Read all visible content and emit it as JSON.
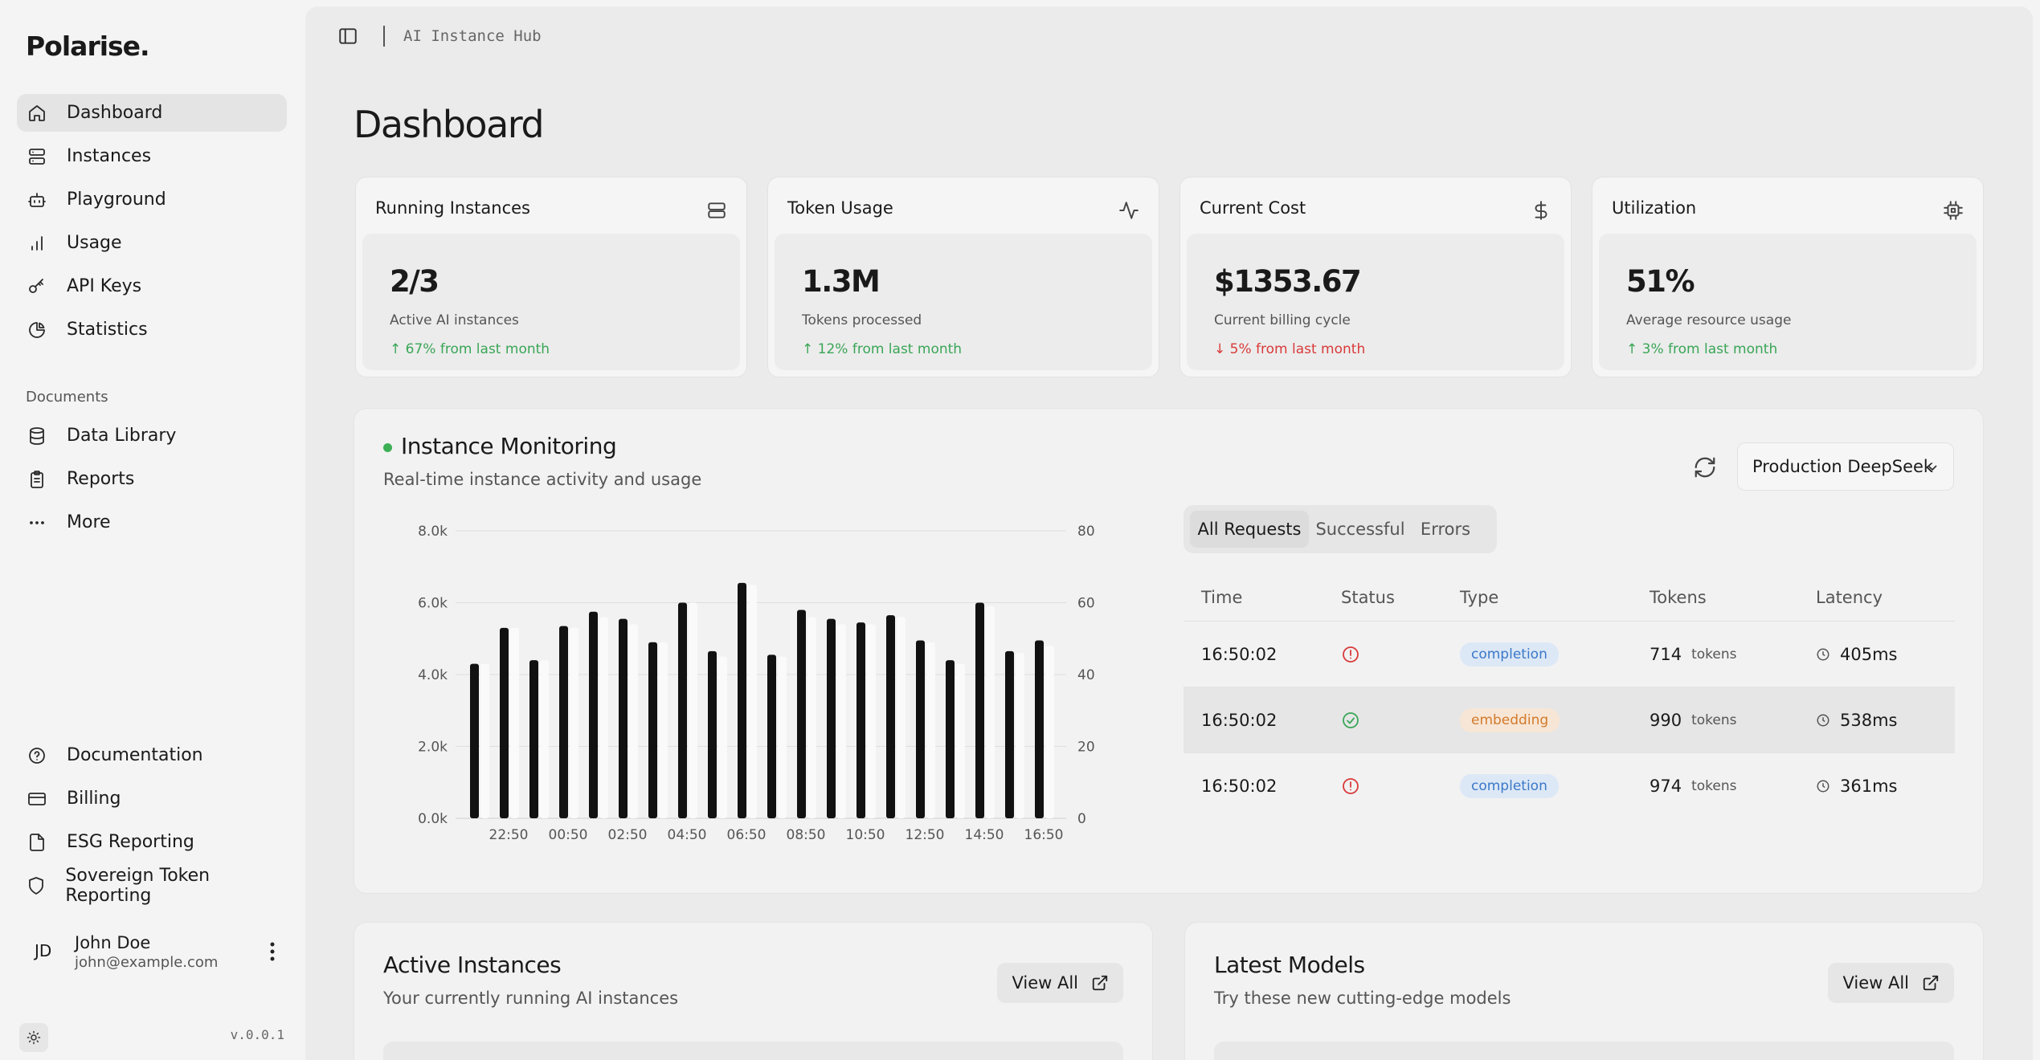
{
  "sidebar": {
    "brand": "Polarise.",
    "nav": [
      {
        "label": "Dashboard",
        "icon": "home-icon",
        "active": true
      },
      {
        "label": "Instances",
        "icon": "server-icon"
      },
      {
        "label": "Playground",
        "icon": "bot-icon"
      },
      {
        "label": "Usage",
        "icon": "bar-chart-icon"
      },
      {
        "label": "API Keys",
        "icon": "key-icon"
      },
      {
        "label": "Statistics",
        "icon": "pie-chart-icon"
      }
    ],
    "documents_label": "Documents",
    "documents": [
      {
        "label": "Data Library",
        "icon": "database-icon"
      },
      {
        "label": "Reports",
        "icon": "clipboard-icon"
      },
      {
        "label": "More",
        "icon": "more-horizontal-icon"
      }
    ],
    "secondary": [
      {
        "label": "Documentation",
        "icon": "help-circle-icon"
      },
      {
        "label": "Billing",
        "icon": "credit-card-icon"
      },
      {
        "label": "ESG Reporting",
        "icon": "file-icon"
      },
      {
        "label": "Sovereign Token Reporting",
        "icon": "shield-icon"
      }
    ],
    "user": {
      "initials": "JD",
      "name": "John Doe",
      "email": "john@example.com"
    },
    "version": "v.0.0.1"
  },
  "topbar": {
    "breadcrumb": "AI Instance Hub"
  },
  "page_title": "Dashboard",
  "stats": [
    {
      "label": "Running Instances",
      "icon": "server-icon",
      "value": "2/3",
      "sub": "Active AI instances",
      "change": "67% from last month",
      "direction": "up"
    },
    {
      "label": "Token Usage",
      "icon": "activity-icon",
      "value": "1.3M",
      "sub": "Tokens processed",
      "change": "12% from last month",
      "direction": "up"
    },
    {
      "label": "Current Cost",
      "icon": "dollar-icon",
      "value": "$1353.67",
      "sub": "Current billing cycle",
      "change": "5% from last month",
      "direction": "down"
    },
    {
      "label": "Utilization",
      "icon": "cpu-icon",
      "value": "51%",
      "sub": "Average resource usage",
      "change": "3% from last month",
      "direction": "up"
    }
  ],
  "monitoring": {
    "title": "Instance Monitoring",
    "subtitle": "Real-time instance activity and usage",
    "selected_instance": "Production DeepSeek",
    "tabs": [
      "All Requests",
      "Successful",
      "Errors"
    ],
    "active_tab": "All Requests",
    "columns": [
      "Time",
      "Status",
      "Type",
      "Tokens",
      "Latency"
    ],
    "rows": [
      {
        "time": "16:50:02",
        "status": "error",
        "type": "completion",
        "tokens": "714",
        "tokens_unit": "tokens",
        "latency": "405ms"
      },
      {
        "time": "16:50:02",
        "status": "success",
        "type": "embedding",
        "tokens": "990",
        "tokens_unit": "tokens",
        "latency": "538ms"
      },
      {
        "time": "16:50:02",
        "status": "error",
        "type": "completion",
        "tokens": "974",
        "tokens_unit": "tokens",
        "latency": "361ms"
      }
    ]
  },
  "chart_data": {
    "type": "bar",
    "x_tick_labels": [
      "22:50",
      "00:50",
      "02:50",
      "04:50",
      "06:50",
      "08:50",
      "10:50",
      "12:50",
      "14:50",
      "16:50"
    ],
    "y_left_ticks": [
      "0.0k",
      "2.0k",
      "4.0k",
      "6.0k",
      "8.0k"
    ],
    "y_right_ticks": [
      "0",
      "20",
      "40",
      "60",
      "80"
    ],
    "ylim_left": [
      0,
      8000
    ],
    "ylim_right": [
      0,
      80
    ],
    "grid": true,
    "series": [
      {
        "color": "#111111",
        "axis": "left",
        "values": [
          4300,
          5300,
          4400,
          5350,
          5750,
          5550,
          4900,
          6000,
          4650,
          6550,
          4550,
          5800,
          5550,
          5450,
          5650,
          4950,
          4400,
          6000,
          4650,
          4950
        ]
      },
      {
        "color": "#fafafa",
        "axis": "right",
        "values": [
          43,
          53,
          44,
          53,
          56,
          54,
          49,
          60,
          45,
          65,
          45,
          56,
          54,
          54,
          56,
          49,
          43,
          59,
          46,
          48
        ]
      }
    ]
  },
  "active_instances": {
    "title": "Active Instances",
    "subtitle": "Your currently running AI instances",
    "button": "View All"
  },
  "latest_models": {
    "title": "Latest Models",
    "subtitle": "Try these new cutting-edge models",
    "button": "View All"
  }
}
